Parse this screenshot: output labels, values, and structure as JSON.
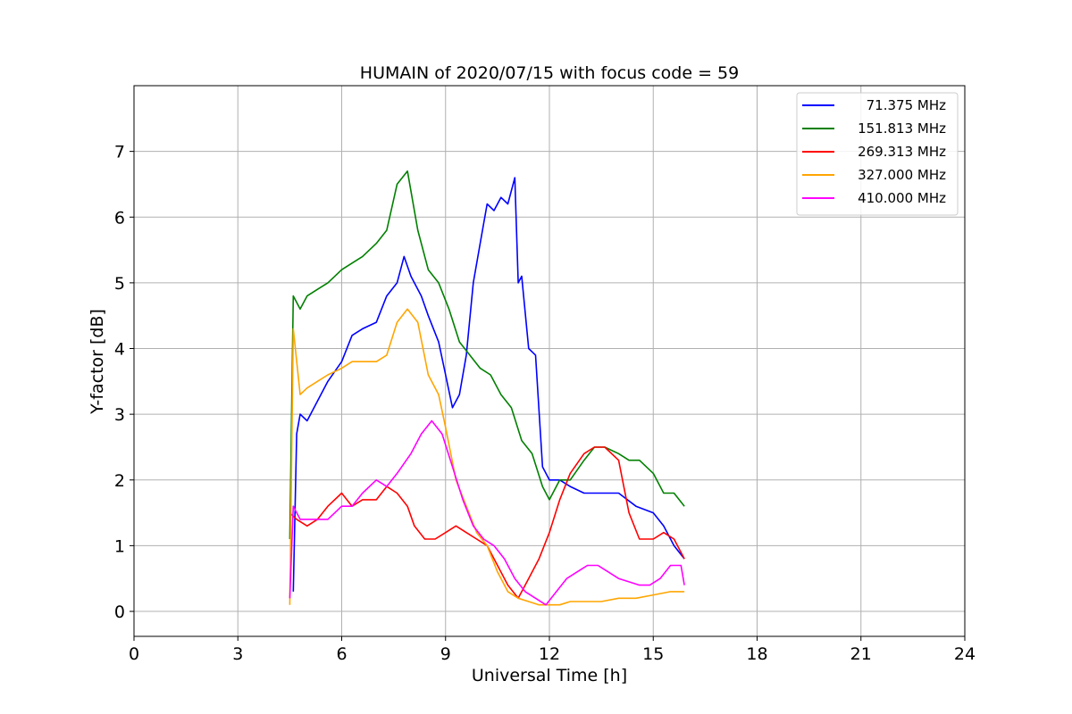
{
  "chart_data": {
    "type": "line",
    "title": "HUMAIN of 2020/07/15 with focus code = 59",
    "xlabel": "Universal Time [h]",
    "ylabel": "Y-factor [dB]",
    "xlim": [
      0,
      24
    ],
    "ylim": [
      -0.38,
      8.0
    ],
    "xticks": [
      0,
      3,
      6,
      9,
      12,
      15,
      18,
      21,
      24
    ],
    "yticks": [
      0,
      1,
      2,
      3,
      4,
      5,
      6,
      7
    ],
    "grid": true,
    "legend_position": "top-right",
    "series": [
      {
        "name": "71.375 MHz",
        "color": "#0000ff",
        "x": [
          4.6,
          4.7,
          4.8,
          5.0,
          5.3,
          5.6,
          6.0,
          6.3,
          6.6,
          7.0,
          7.3,
          7.6,
          7.8,
          8.0,
          8.3,
          8.5,
          8.8,
          9.0,
          9.2,
          9.4,
          9.6,
          9.8,
          10.0,
          10.2,
          10.4,
          10.6,
          10.8,
          11.0,
          11.1,
          11.2,
          11.4,
          11.6,
          11.8,
          12.0,
          12.3,
          12.6,
          13.0,
          13.5,
          14.0,
          14.5,
          15.0,
          15.3,
          15.6,
          15.9
        ],
        "y": [
          0.3,
          2.7,
          3.0,
          2.9,
          3.2,
          3.5,
          3.8,
          4.2,
          4.3,
          4.4,
          4.8,
          5.0,
          5.4,
          5.1,
          4.8,
          4.5,
          4.1,
          3.6,
          3.1,
          3.3,
          3.9,
          5.0,
          5.6,
          6.2,
          6.1,
          6.3,
          6.2,
          6.6,
          5.0,
          5.1,
          4.0,
          3.9,
          2.2,
          2.0,
          2.0,
          1.9,
          1.8,
          1.8,
          1.8,
          1.6,
          1.5,
          1.3,
          1.0,
          0.8
        ]
      },
      {
        "name": "151.813 MHz",
        "color": "#008000",
        "x": [
          4.5,
          4.6,
          4.8,
          5.0,
          5.3,
          5.6,
          6.0,
          6.3,
          6.6,
          7.0,
          7.3,
          7.6,
          7.9,
          8.2,
          8.5,
          8.8,
          9.1,
          9.4,
          9.7,
          10.0,
          10.3,
          10.6,
          10.9,
          11.2,
          11.5,
          11.8,
          12.0,
          12.3,
          12.6,
          13.0,
          13.3,
          13.6,
          14.0,
          14.3,
          14.6,
          15.0,
          15.3,
          15.6,
          15.9
        ],
        "y": [
          1.1,
          4.8,
          4.6,
          4.8,
          4.9,
          5.0,
          5.2,
          5.3,
          5.4,
          5.6,
          5.8,
          6.5,
          6.7,
          5.8,
          5.2,
          5.0,
          4.6,
          4.1,
          3.9,
          3.7,
          3.6,
          3.3,
          3.1,
          2.6,
          2.4,
          1.9,
          1.7,
          2.0,
          2.0,
          2.3,
          2.5,
          2.5,
          2.4,
          2.3,
          2.3,
          2.1,
          1.8,
          1.8,
          1.6
        ]
      },
      {
        "name": "269.313 MHz",
        "color": "#ff0000",
        "x": [
          4.5,
          4.7,
          5.0,
          5.3,
          5.6,
          6.0,
          6.3,
          6.6,
          7.0,
          7.3,
          7.6,
          7.9,
          8.1,
          8.4,
          8.7,
          9.0,
          9.3,
          9.6,
          9.9,
          10.2,
          10.5,
          10.8,
          11.1,
          11.4,
          11.7,
          12.0,
          12.3,
          12.6,
          13.0,
          13.3,
          13.6,
          14.0,
          14.3,
          14.6,
          15.0,
          15.3,
          15.6,
          15.9
        ],
        "y": [
          1.5,
          1.4,
          1.3,
          1.4,
          1.6,
          1.8,
          1.6,
          1.7,
          1.7,
          1.9,
          1.8,
          1.6,
          1.3,
          1.1,
          1.1,
          1.2,
          1.3,
          1.2,
          1.1,
          1.0,
          0.7,
          0.4,
          0.2,
          0.5,
          0.8,
          1.2,
          1.7,
          2.1,
          2.4,
          2.5,
          2.5,
          2.3,
          1.5,
          1.1,
          1.1,
          1.2,
          1.1,
          0.8
        ]
      },
      {
        "name": "327.000 MHz",
        "color": "#ffa500",
        "x": [
          4.5,
          4.6,
          4.8,
          5.0,
          5.3,
          5.6,
          6.0,
          6.3,
          6.6,
          7.0,
          7.3,
          7.6,
          7.9,
          8.2,
          8.5,
          8.8,
          9.0,
          9.3,
          9.6,
          9.9,
          10.2,
          10.5,
          10.8,
          11.1,
          11.4,
          11.7,
          12.0,
          12.3,
          12.6,
          13.0,
          13.5,
          14.0,
          14.5,
          15.0,
          15.5,
          15.9
        ],
        "y": [
          0.1,
          4.3,
          3.3,
          3.4,
          3.5,
          3.6,
          3.7,
          3.8,
          3.8,
          3.8,
          3.9,
          4.4,
          4.6,
          4.4,
          3.6,
          3.3,
          2.8,
          2.0,
          1.6,
          1.2,
          1.0,
          0.6,
          0.3,
          0.2,
          0.15,
          0.1,
          0.1,
          0.1,
          0.15,
          0.15,
          0.15,
          0.2,
          0.2,
          0.25,
          0.3,
          0.3
        ]
      },
      {
        "name": "410.000 MHz",
        "color": "#ff00ff",
        "x": [
          4.5,
          4.6,
          4.8,
          5.0,
          5.3,
          5.6,
          6.0,
          6.3,
          6.6,
          7.0,
          7.3,
          7.6,
          8.0,
          8.3,
          8.6,
          8.9,
          9.2,
          9.5,
          9.8,
          10.1,
          10.4,
          10.7,
          11.0,
          11.3,
          11.6,
          11.9,
          12.2,
          12.5,
          12.8,
          13.1,
          13.4,
          13.7,
          14.0,
          14.3,
          14.6,
          14.9,
          15.2,
          15.5,
          15.8,
          15.9
        ],
        "y": [
          0.2,
          1.6,
          1.4,
          1.4,
          1.4,
          1.4,
          1.6,
          1.6,
          1.8,
          2.0,
          1.9,
          2.1,
          2.4,
          2.7,
          2.9,
          2.7,
          2.2,
          1.7,
          1.3,
          1.1,
          1.0,
          0.8,
          0.5,
          0.3,
          0.2,
          0.1,
          0.3,
          0.5,
          0.6,
          0.7,
          0.7,
          0.6,
          0.5,
          0.45,
          0.4,
          0.4,
          0.5,
          0.7,
          0.7,
          0.4
        ]
      }
    ]
  }
}
